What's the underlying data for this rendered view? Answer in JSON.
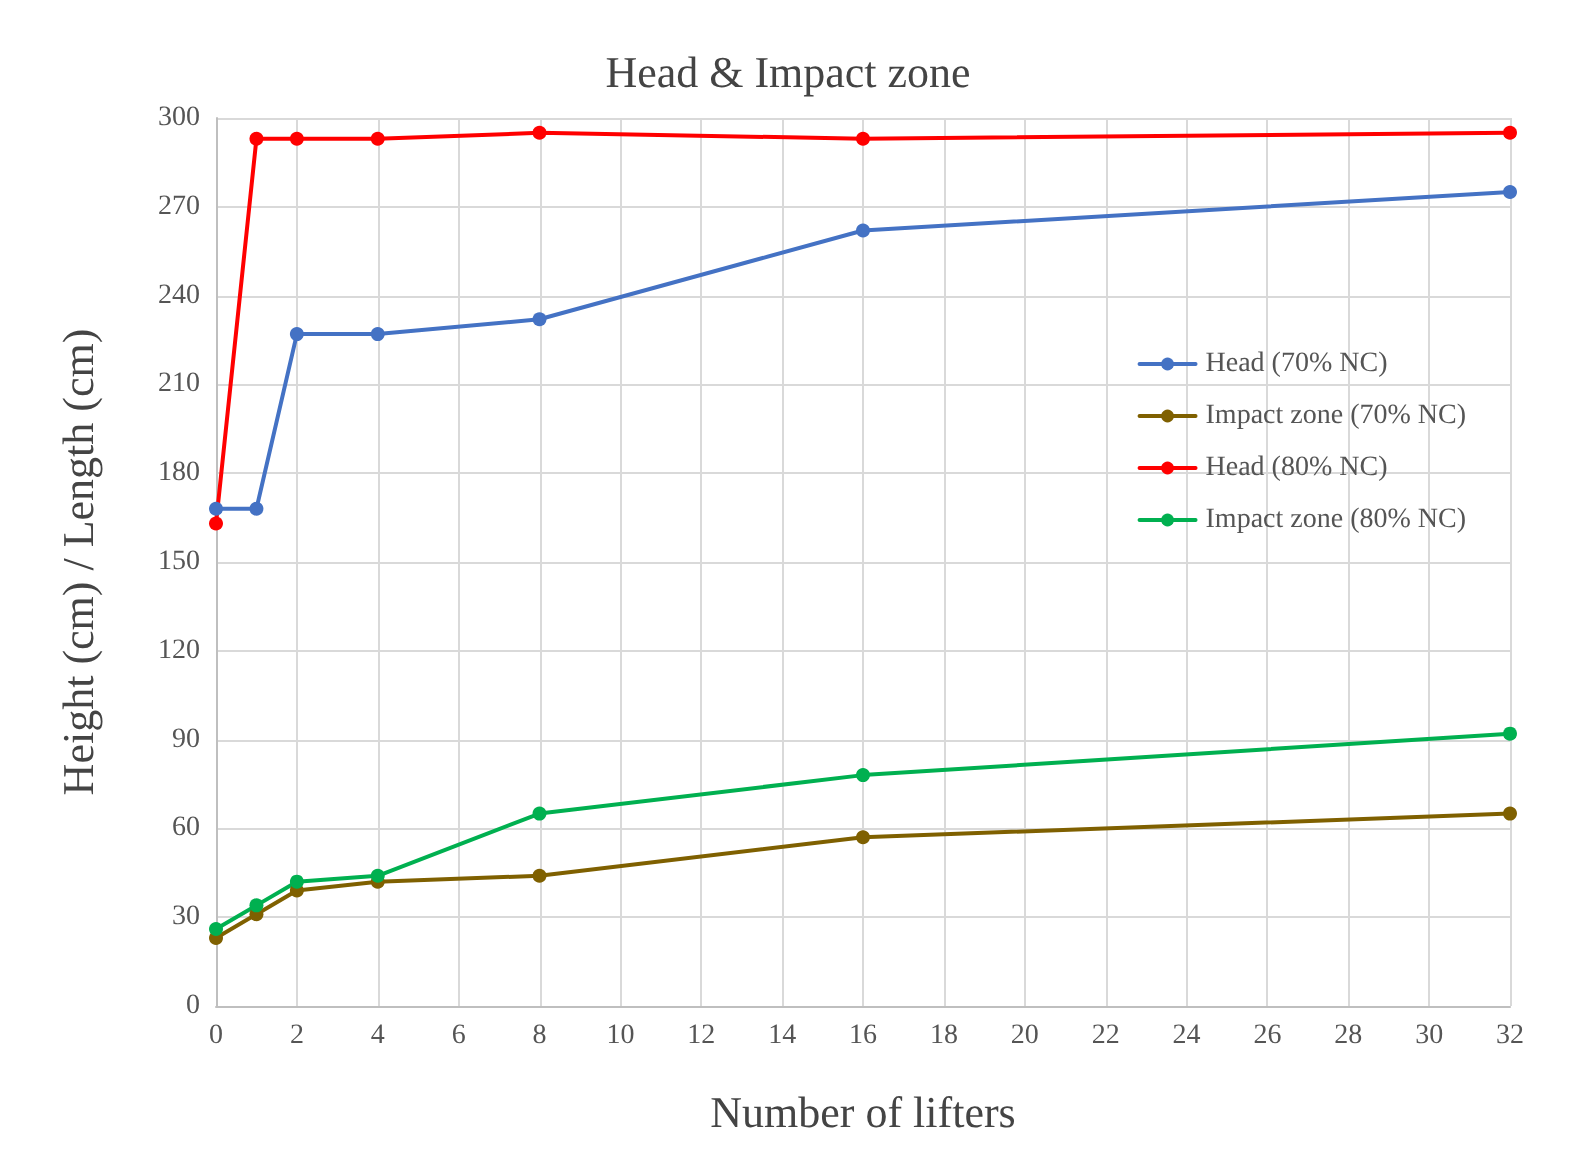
{
  "chart_data": {
    "type": "line",
    "title": "Head & Impact zone",
    "xlabel": "Number of lifters",
    "ylabel": "Height (cm) / Length (cm)",
    "x": [
      0,
      1,
      2,
      4,
      8,
      16,
      32
    ],
    "series": [
      {
        "name": "Head (70% NC)",
        "color": "#4472c4",
        "values": [
          168,
          168,
          227,
          227,
          232,
          262,
          275
        ]
      },
      {
        "name": "Impact zone (70% NC)",
        "color": "#7f6000",
        "values": [
          23,
          31,
          39,
          42,
          44,
          57,
          65
        ]
      },
      {
        "name": "Head (80% NC)",
        "color": "#ff0000",
        "values": [
          163,
          293,
          293,
          293,
          295,
          293,
          295
        ]
      },
      {
        "name": "Impact zone (80% NC)",
        "color": "#00b050",
        "values": [
          26,
          34,
          42,
          44,
          65,
          78,
          92
        ]
      }
    ],
    "xlim": [
      0,
      32
    ],
    "xticks": [
      0,
      2,
      4,
      6,
      8,
      10,
      12,
      14,
      16,
      18,
      20,
      22,
      24,
      26,
      28,
      30,
      32
    ],
    "ylim": [
      0,
      300
    ],
    "yticks": [
      0,
      30,
      60,
      90,
      120,
      150,
      180,
      210,
      240,
      270,
      300
    ],
    "grid": true,
    "legend": "right",
    "marker": "circle",
    "line_style": "solid"
  }
}
